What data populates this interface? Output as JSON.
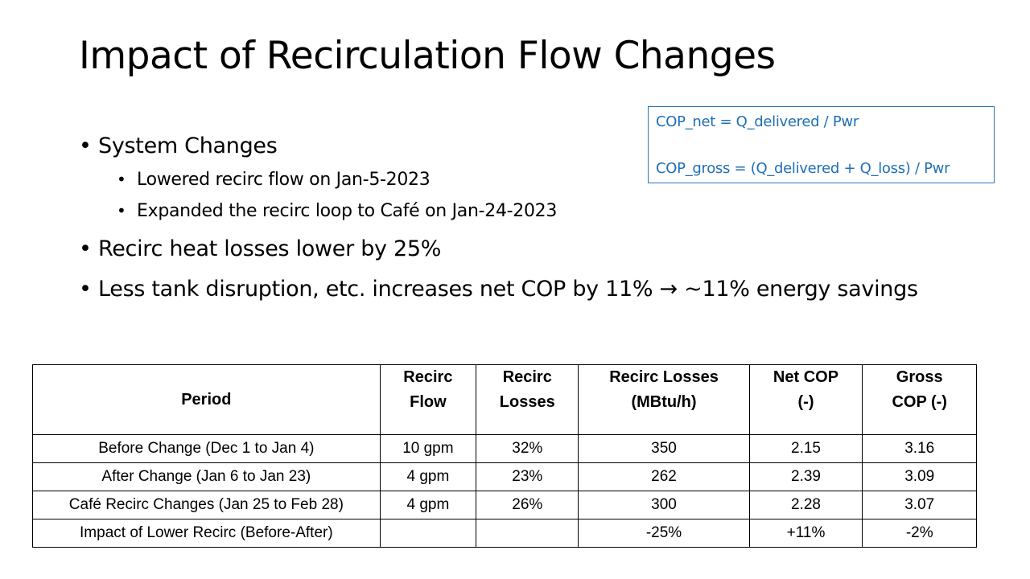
{
  "slide": {
    "title": "Impact of Recirculation Flow Changes"
  },
  "formula_box": {
    "line1": "COP_net = Q_delivered / Pwr",
    "line2": "COP_gross = (Q_delivered + Q_loss) / Pwr"
  },
  "bullets": {
    "system_changes": "System Changes",
    "sub1": "Lowered recirc flow on Jan-5-2023",
    "sub2": "Expanded the recirc loop to Café on Jan-24-2023",
    "losses": "Recirc heat losses lower by 25%",
    "cop": "Less tank disruption, etc. increases net COP by 11% → ~11% energy savings",
    "dot": "•"
  },
  "table": {
    "headers": {
      "period": "Period",
      "flow_1": "Recirc",
      "flow_2": "Flow",
      "losses_1": "Recirc",
      "losses_2": "Losses",
      "mbtu_1": "Recirc Losses",
      "mbtu_2": "(MBtu/h)",
      "net_1": "Net COP",
      "net_2": "(-)",
      "gross_1": "Gross",
      "gross_2": "COP (-)"
    },
    "rows": [
      {
        "period": "Before Change (Dec 1 to Jan 4)",
        "flow": "10 gpm",
        "losses": "32%",
        "mbtu": "350",
        "net": "2.15",
        "gross": "3.16"
      },
      {
        "period": "After Change (Jan 6 to Jan 23)",
        "flow": "4 gpm",
        "losses": "23%",
        "mbtu": "262",
        "net": "2.39",
        "gross": "3.09"
      },
      {
        "period": "Café Recirc Changes (Jan 25 to Feb 28)",
        "flow": "4 gpm",
        "losses": "26%",
        "mbtu": "300",
        "net": "2.28",
        "gross": "3.07"
      },
      {
        "period": "Impact of Lower Recirc (Before-After)",
        "flow": "",
        "losses": "",
        "mbtu": "-25%",
        "net": "+11%",
        "gross": "-2%"
      }
    ]
  }
}
